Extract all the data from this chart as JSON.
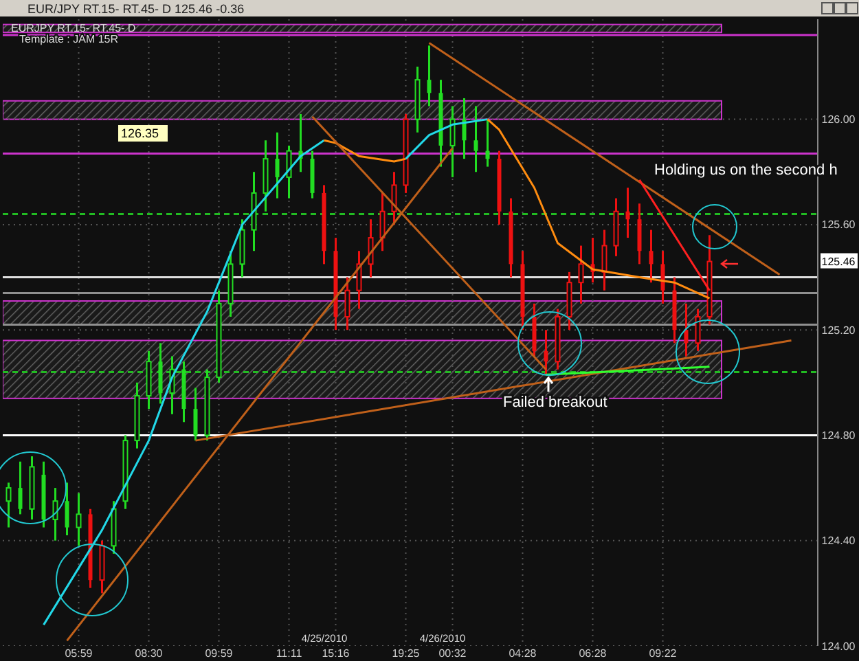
{
  "chart_data": {
    "type": "candlestick",
    "title": "EUR/JPY RT.15- RT.45- D  125.46  -0.36",
    "subtitle": "EURJPY RT.15- RT.45- D",
    "annotations": [
      "Template : JAM 15R",
      "126.35",
      "4/25/2010",
      "4/26/2010",
      "Holding us on the second h",
      "Failed breakout",
      {
        "text": "125.46",
        "y": 125.46
      }
    ],
    "categories": [
      null,
      null,
      null,
      null,
      null,
      null,
      "05:59",
      null,
      null,
      null,
      null,
      null,
      "08:30",
      null,
      null,
      null,
      null,
      null,
      "09:59",
      null,
      null,
      null,
      null,
      null,
      "11:11",
      null,
      null,
      null,
      "15:16",
      null,
      null,
      null,
      null,
      null,
      "19:25",
      null,
      null,
      null,
      "00:32",
      null,
      null,
      null,
      null,
      null,
      "04:28",
      null,
      null,
      null,
      null,
      null,
      "06:28",
      null,
      null,
      null,
      null,
      null,
      "09:22",
      null,
      null,
      null,
      null,
      null,
      null,
      null,
      null,
      null,
      null,
      null,
      null
    ],
    "ohlc": [
      [
        124.55,
        124.62,
        124.45,
        124.6
      ],
      [
        124.6,
        124.7,
        124.5,
        124.52
      ],
      [
        124.52,
        124.72,
        124.48,
        124.68
      ],
      [
        124.65,
        124.7,
        124.45,
        124.48
      ],
      [
        124.48,
        124.6,
        124.4,
        124.55
      ],
      [
        124.55,
        124.62,
        124.42,
        124.45
      ],
      [
        124.45,
        124.58,
        124.38,
        124.5
      ],
      [
        124.5,
        124.52,
        124.22,
        124.25
      ],
      [
        124.25,
        124.4,
        124.2,
        124.38
      ],
      [
        124.38,
        124.55,
        124.35,
        124.52
      ],
      [
        124.55,
        124.8,
        124.52,
        124.78
      ],
      [
        124.78,
        125.0,
        124.75,
        124.95
      ],
      [
        124.95,
        125.12,
        124.9,
        125.08
      ],
      [
        125.08,
        125.15,
        124.92,
        124.96
      ],
      [
        124.96,
        125.1,
        124.88,
        125.05
      ],
      [
        125.05,
        125.08,
        124.85,
        124.9
      ],
      [
        124.9,
        124.98,
        124.78,
        124.8
      ],
      [
        124.8,
        125.05,
        124.78,
        125.02
      ],
      [
        125.02,
        125.35,
        125.0,
        125.3
      ],
      [
        125.3,
        125.5,
        125.25,
        125.45
      ],
      [
        125.45,
        125.62,
        125.4,
        125.58
      ],
      [
        125.58,
        125.8,
        125.5,
        125.72
      ],
      [
        125.72,
        125.92,
        125.65,
        125.85
      ],
      [
        125.85,
        125.95,
        125.7,
        125.78
      ],
      [
        125.78,
        125.9,
        125.7,
        125.88
      ],
      [
        125.88,
        126.02,
        125.8,
        125.85
      ],
      [
        125.85,
        125.88,
        125.7,
        125.72
      ],
      [
        125.72,
        125.75,
        125.45,
        125.5
      ],
      [
        125.5,
        125.55,
        125.2,
        125.25
      ],
      [
        125.25,
        125.4,
        125.2,
        125.35
      ],
      [
        125.35,
        125.5,
        125.28,
        125.45
      ],
      [
        125.45,
        125.62,
        125.4,
        125.55
      ],
      [
        125.55,
        125.72,
        125.5,
        125.65
      ],
      [
        125.65,
        125.8,
        125.6,
        125.75
      ],
      [
        125.75,
        126.02,
        125.72,
        126.0
      ],
      [
        126.0,
        126.2,
        125.95,
        126.15
      ],
      [
        126.15,
        126.28,
        126.05,
        126.1
      ],
      [
        126.1,
        126.15,
        125.82,
        125.9
      ],
      [
        125.9,
        126.05,
        125.78,
        126.0
      ],
      [
        126.0,
        126.08,
        125.85,
        125.92
      ],
      [
        125.92,
        126.05,
        125.8,
        125.88
      ],
      [
        125.88,
        126.0,
        125.82,
        125.85
      ],
      [
        125.85,
        125.88,
        125.6,
        125.65
      ],
      [
        125.65,
        125.7,
        125.4,
        125.45
      ],
      [
        125.45,
        125.5,
        125.2,
        125.25
      ],
      [
        125.25,
        125.3,
        125.1,
        125.12
      ],
      [
        125.12,
        125.2,
        125.03,
        125.08
      ],
      [
        125.08,
        125.28,
        125.05,
        125.25
      ],
      [
        125.25,
        125.42,
        125.2,
        125.38
      ],
      [
        125.38,
        125.52,
        125.3,
        125.45
      ],
      [
        125.45,
        125.55,
        125.38,
        125.42
      ],
      [
        125.42,
        125.58,
        125.35,
        125.52
      ],
      [
        125.52,
        125.7,
        125.48,
        125.65
      ],
      [
        125.65,
        125.74,
        125.55,
        125.62
      ],
      [
        125.62,
        125.68,
        125.45,
        125.5
      ],
      [
        125.5,
        125.58,
        125.38,
        125.45
      ],
      [
        125.45,
        125.5,
        125.3,
        125.35
      ],
      [
        125.35,
        125.4,
        125.15,
        125.2
      ],
      [
        125.2,
        125.3,
        125.1,
        125.15
      ],
      [
        125.15,
        125.28,
        125.12,
        125.25
      ],
      [
        125.25,
        125.56,
        125.22,
        125.46
      ],
      null,
      null,
      null,
      null,
      null,
      null,
      null,
      null
    ],
    "colors": [
      "#22dd22",
      "#22dd22",
      "#22dd22",
      "#22dd22",
      "#22dd22",
      "#22dd22",
      "#22dd22",
      "#ee1111",
      "#ee1111",
      "#22dd22",
      "#22dd22",
      "#22dd22",
      "#22dd22",
      "#22dd22",
      "#22dd22",
      "#22dd22",
      "#22dd22",
      "#22dd22",
      "#22dd22",
      "#22dd22",
      "#22dd22",
      "#22dd22",
      "#22dd22",
      "#22dd22",
      "#22dd22",
      "#22dd22",
      "#22dd22",
      "#ee1111",
      "#ee1111",
      "#ee1111",
      "#ee1111",
      "#ee1111",
      "#ee1111",
      "#ee1111",
      "#ee1111",
      "#22dd22",
      "#22dd22",
      "#22dd22",
      "#22dd22",
      "#22dd22",
      "#22dd22",
      "#22dd22",
      "#ee1111",
      "#ee1111",
      "#ee1111",
      "#ee1111",
      "#ee1111",
      "#ee1111",
      "#ee1111",
      "#ee1111",
      "#ee1111",
      "#ee1111",
      "#ee1111",
      "#ee1111",
      "#ee1111",
      "#ee1111",
      "#ee1111",
      "#ee1111",
      "#ee1111",
      "#ee1111",
      "#ee1111",
      null,
      null,
      null,
      null,
      null,
      null,
      null,
      null
    ],
    "series": [
      {
        "type": "line",
        "color": "#22d8e8",
        "values": [
          null,
          null,
          null,
          124.08,
          null,
          null,
          null,
          null,
          124.44,
          null,
          null,
          null,
          124.78,
          null,
          125.02,
          null,
          null,
          125.27,
          null,
          null,
          125.6,
          null,
          null,
          null,
          null,
          125.86,
          null,
          125.92,
          null,
          null,
          null,
          null,
          null,
          null,
          null,
          null,
          null,
          null,
          null,
          null,
          null,
          null,
          null,
          null,
          null,
          null,
          null,
          null,
          null,
          null,
          null,
          null,
          null,
          null,
          null,
          null,
          null,
          null,
          null,
          null,
          null,
          null,
          null,
          null,
          null,
          null,
          null,
          null,
          null
        ]
      },
      {
        "type": "line",
        "color": "#ff8c10",
        "values": [
          null,
          null,
          null,
          null,
          null,
          null,
          null,
          null,
          null,
          null,
          null,
          null,
          null,
          null,
          null,
          null,
          null,
          null,
          null,
          null,
          null,
          null,
          null,
          null,
          null,
          null,
          null,
          125.92,
          125.91,
          null,
          125.86,
          null,
          null,
          125.84,
          125.85,
          null,
          null,
          null,
          null,
          null,
          null,
          null,
          null,
          null,
          null,
          null,
          null,
          null,
          null,
          null,
          null,
          null,
          null,
          null,
          null,
          null,
          null,
          null,
          null,
          null,
          null,
          null,
          null,
          null,
          null,
          null,
          null,
          null,
          null
        ]
      },
      {
        "type": "line",
        "color": "#22d8e8",
        "values": [
          null,
          null,
          null,
          null,
          null,
          null,
          null,
          null,
          null,
          null,
          null,
          null,
          null,
          null,
          null,
          null,
          null,
          null,
          null,
          null,
          null,
          null,
          null,
          null,
          null,
          null,
          null,
          null,
          null,
          null,
          null,
          null,
          null,
          null,
          125.85,
          null,
          125.94,
          null,
          125.98,
          null,
          null,
          126.0,
          null,
          null,
          null,
          null,
          null,
          null,
          null,
          null,
          null,
          null,
          null,
          null,
          null,
          null,
          null,
          null,
          null,
          null,
          null,
          null,
          null,
          null,
          null,
          null,
          null,
          null,
          null
        ]
      },
      {
        "type": "line",
        "color": "#ff8c10",
        "values": [
          null,
          null,
          null,
          null,
          null,
          null,
          null,
          null,
          null,
          null,
          null,
          null,
          null,
          null,
          null,
          null,
          null,
          null,
          null,
          null,
          null,
          null,
          null,
          null,
          null,
          null,
          null,
          null,
          null,
          null,
          null,
          null,
          null,
          null,
          null,
          null,
          null,
          null,
          null,
          null,
          null,
          126.0,
          125.96,
          null,
          null,
          125.74,
          null,
          125.53,
          null,
          null,
          125.43,
          null,
          null,
          null,
          125.4,
          null,
          null,
          125.38,
          null,
          null,
          125.32,
          null,
          null,
          null,
          null,
          null,
          null,
          null,
          null
        ]
      },
      {
        "type": "line",
        "color": "#c0601a",
        "values": [
          null,
          null,
          null,
          null,
          null,
          124.02,
          null,
          null,
          null,
          null,
          null,
          null,
          null,
          null,
          null,
          null,
          null,
          null,
          null,
          null,
          null,
          null,
          null,
          null,
          null,
          null,
          null,
          null,
          null,
          null,
          null,
          null,
          null,
          null,
          null,
          null,
          null,
          null,
          125.89,
          null,
          null,
          null,
          null,
          null,
          null,
          null,
          null,
          null,
          null,
          null,
          null,
          null,
          null,
          null,
          null,
          null,
          null,
          null,
          null,
          null,
          null,
          null,
          null,
          null,
          null,
          null,
          null,
          null,
          null
        ]
      },
      {
        "type": "line",
        "color": "#c0601a",
        "values": [
          null,
          null,
          null,
          null,
          null,
          null,
          null,
          null,
          null,
          null,
          null,
          null,
          null,
          null,
          null,
          null,
          null,
          null,
          null,
          null,
          null,
          null,
          null,
          null,
          null,
          null,
          126.01,
          null,
          null,
          null,
          null,
          null,
          null,
          null,
          null,
          null,
          null,
          null,
          null,
          null,
          null,
          null,
          null,
          null,
          null,
          null,
          125.05,
          null,
          null,
          null,
          null,
          null,
          null,
          null,
          null,
          null,
          null,
          null,
          null,
          null,
          null,
          null,
          null,
          null,
          null,
          null,
          null,
          null,
          null
        ]
      },
      {
        "type": "line",
        "color": "#c0601a",
        "values": [
          null,
          null,
          null,
          null,
          null,
          null,
          null,
          null,
          null,
          null,
          null,
          null,
          null,
          null,
          null,
          null,
          null,
          null,
          null,
          null,
          null,
          null,
          null,
          null,
          null,
          null,
          null,
          null,
          null,
          null,
          null,
          null,
          null,
          null,
          null,
          null,
          126.29,
          null,
          null,
          null,
          null,
          null,
          null,
          null,
          null,
          null,
          null,
          null,
          null,
          null,
          null,
          null,
          null,
          null,
          null,
          null,
          null,
          null,
          null,
          null,
          null,
          null,
          null,
          null,
          null,
          null,
          125.41,
          null,
          null
        ]
      },
      {
        "type": "line",
        "color": "#c0601a",
        "values": [
          null,
          null,
          null,
          null,
          null,
          null,
          null,
          null,
          null,
          null,
          null,
          null,
          null,
          null,
          null,
          null,
          124.78,
          null,
          null,
          null,
          null,
          null,
          null,
          null,
          null,
          null,
          null,
          null,
          null,
          null,
          null,
          null,
          null,
          null,
          null,
          null,
          null,
          null,
          null,
          null,
          null,
          null,
          null,
          null,
          null,
          null,
          null,
          null,
          null,
          null,
          null,
          null,
          null,
          null,
          null,
          null,
          null,
          null,
          null,
          null,
          null,
          null,
          null,
          null,
          null,
          null,
          null,
          125.16,
          null
        ]
      },
      {
        "type": "line",
        "color": "#ff2020",
        "values": [
          null,
          null,
          null,
          null,
          null,
          null,
          null,
          null,
          null,
          null,
          null,
          null,
          null,
          null,
          null,
          null,
          null,
          null,
          null,
          null,
          null,
          null,
          null,
          null,
          null,
          null,
          null,
          null,
          null,
          null,
          null,
          null,
          null,
          null,
          null,
          null,
          null,
          null,
          null,
          null,
          null,
          null,
          null,
          null,
          null,
          null,
          null,
          null,
          null,
          null,
          null,
          null,
          null,
          null,
          125.77,
          null,
          null,
          null,
          null,
          null,
          125.35,
          null,
          null,
          null,
          null,
          null,
          null,
          null,
          null
        ]
      },
      {
        "type": "line",
        "color": "#30ff30",
        "values": [
          null,
          null,
          null,
          null,
          null,
          null,
          null,
          null,
          null,
          null,
          null,
          null,
          null,
          null,
          null,
          null,
          null,
          null,
          null,
          null,
          null,
          null,
          null,
          null,
          null,
          null,
          null,
          null,
          null,
          null,
          null,
          null,
          null,
          null,
          null,
          null,
          null,
          null,
          null,
          null,
          null,
          null,
          null,
          null,
          null,
          null,
          125.03,
          null,
          null,
          null,
          null,
          null,
          null,
          null,
          null,
          null,
          null,
          null,
          null,
          null,
          125.06,
          null,
          null,
          null,
          null,
          null,
          null,
          null,
          null
        ]
      }
    ],
    "ylim": [
      124.0,
      126.38
    ],
    "yticks": [
      {
        "value": 124.0,
        "label": "124.00"
      },
      {
        "value": 124.4,
        "label": "124.40"
      },
      {
        "value": 124.8,
        "label": "124.80"
      },
      {
        "value": 125.2,
        "label": "125.20"
      },
      {
        "value": 125.6,
        "label": "125.60"
      },
      {
        "value": 126.0,
        "label": "126.00"
      }
    ],
    "grid": true,
    "ref_lines": [
      {
        "axis": "y",
        "value": 124.8,
        "color": "#ffffff"
      },
      {
        "axis": "y",
        "value": 125.4,
        "color": "#e0e0e0"
      },
      {
        "axis": "y",
        "value": 125.34,
        "color": "#909090"
      },
      {
        "axis": "y",
        "value": 125.22,
        "color": "#909090"
      },
      {
        "axis": "y",
        "value": 125.87,
        "color": "#cc33cc"
      },
      {
        "axis": "y",
        "value": 126.32,
        "color": "#cc33cc"
      },
      {
        "axis": "y",
        "value": 125.64,
        "color": "#22bb22",
        "line_style": "dashed"
      },
      {
        "axis": "y",
        "value": 125.04,
        "color": "#22bb22",
        "line_style": "dashed"
      }
    ],
    "bands": [
      {
        "axis": "y",
        "from": 126.0,
        "to": 126.07,
        "color": "#cc33cc"
      },
      {
        "axis": "y",
        "from": 125.22,
        "to": 125.31,
        "color": "#cc33cc"
      },
      {
        "axis": "y",
        "from": 124.94,
        "to": 125.16,
        "color": "#cc33cc"
      },
      {
        "axis": "y",
        "from": 126.33,
        "to": 126.36,
        "color": "#cc33cc"
      }
    ]
  }
}
